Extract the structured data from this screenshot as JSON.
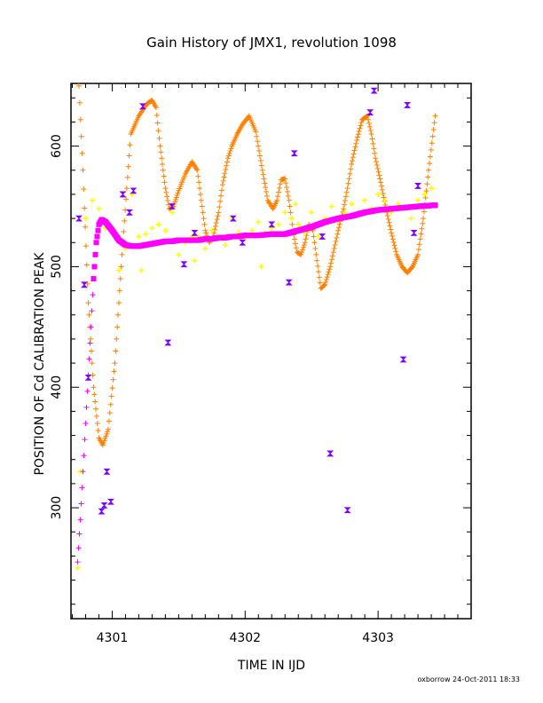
{
  "chart_data": {
    "type": "scatter",
    "title": "Gain History of JMX1, revolution 1098",
    "xlabel": "TIME IN IJD",
    "ylabel": "POSITION OF Cd CALIBRATION PEAK",
    "footer": "oxborrow 24-Oct-2011 18:33",
    "xlim": [
      4300.69,
      4303.7
    ],
    "ylim": [
      208,
      652
    ],
    "xticks": [
      4301,
      4302,
      4303
    ],
    "xtick_labels": [
      "4301",
      "4302",
      "4303"
    ],
    "yticks": [
      300,
      400,
      500,
      600
    ],
    "ytick_labels": [
      "300",
      "400",
      "500",
      "600"
    ],
    "grid": false,
    "legend": "none",
    "colors": {
      "orange": "#ff8000",
      "magenta": "#ff00ff",
      "yellow": "#ffff00",
      "purple": "#8000ff"
    },
    "orange_curve": {
      "x": [
        4300.75,
        4300.78,
        4300.82,
        4300.86,
        4300.9,
        4300.93,
        4300.97,
        4301.02,
        4301.08,
        4301.14,
        4301.2,
        4301.26,
        4301.3,
        4301.33,
        4301.36,
        4301.4,
        4301.43,
        4301.46,
        4301.5,
        4301.55,
        4301.6,
        4301.64,
        4301.67,
        4301.7,
        4301.73,
        4301.76,
        4301.8,
        4301.83,
        4301.87,
        4301.9,
        4301.94,
        4301.98,
        4302.03,
        4302.08,
        4302.13,
        4302.17,
        4302.21,
        4302.24,
        4302.27,
        4302.3,
        4302.33,
        4302.36,
        4302.39,
        4302.42,
        4302.45,
        4302.48,
        4302.51,
        4302.54,
        4302.57,
        4302.6,
        4302.64,
        4302.67,
        4302.7,
        4302.74,
        4302.77,
        4302.8,
        4302.84,
        4302.88,
        4302.92,
        4302.95,
        4302.98,
        4303.02,
        4303.06,
        4303.1,
        4303.14,
        4303.18,
        4303.22,
        4303.26,
        4303.3,
        4303.34,
        4303.38,
        4303.43
      ],
      "y": [
        650,
        580,
        470,
        400,
        358,
        352,
        365,
        420,
        520,
        610,
        625,
        635,
        638,
        632,
        600,
        565,
        548,
        550,
        563,
        577,
        587,
        580,
        555,
        530,
        520,
        525,
        545,
        568,
        590,
        600,
        610,
        618,
        625,
        612,
        580,
        555,
        548,
        555,
        572,
        573,
        555,
        530,
        512,
        510,
        520,
        535,
        530,
        505,
        482,
        485,
        500,
        515,
        530,
        548,
        565,
        585,
        605,
        622,
        625,
        610,
        590,
        570,
        548,
        528,
        510,
        500,
        495,
        500,
        510,
        540,
        580,
        625
      ]
    },
    "magenta_curve": {
      "x": [
        4300.74,
        4300.76,
        4300.78,
        4300.8,
        4300.82,
        4300.84,
        4300.86,
        4300.88,
        4300.9,
        4300.92,
        4300.95,
        4301.0,
        4301.05,
        4301.1,
        4301.15,
        4301.2,
        4301.25,
        4301.3,
        4301.35,
        4301.4,
        4301.45,
        4301.5,
        4301.55,
        4301.6,
        4301.65,
        4301.7,
        4301.75,
        4301.8,
        4301.85,
        4301.9,
        4301.95,
        4302.0,
        4302.1,
        4302.2,
        4302.3,
        4302.4,
        4302.5,
        4302.6,
        4302.7,
        4302.8,
        4302.9,
        4303.0,
        4303.1,
        4303.2,
        4303.3,
        4303.43
      ],
      "y": [
        255,
        290,
        330,
        370,
        410,
        450,
        490,
        520,
        535,
        539,
        537,
        530,
        522,
        518,
        517,
        517,
        518,
        519,
        520,
        521,
        521,
        522,
        522,
        522,
        522,
        523,
        523,
        524,
        524,
        525,
        525,
        526,
        526,
        527,
        527,
        530,
        533,
        537,
        540,
        542,
        545,
        547,
        548,
        549,
        550,
        551
      ]
    },
    "yellow_points": {
      "x": [
        4300.74,
        4300.76,
        4300.8,
        4300.85,
        4300.9,
        4300.95,
        4301.0,
        4301.05,
        4301.1,
        4301.15,
        4301.2,
        4301.25,
        4301.3,
        4301.35,
        4301.4,
        4301.45,
        4301.5,
        4301.55,
        4301.6,
        4301.65,
        4301.7,
        4301.75,
        4301.8,
        4301.85,
        4301.9,
        4301.95,
        4302.0,
        4302.05,
        4302.1,
        4302.15,
        4302.2,
        4302.25,
        4302.3,
        4302.35,
        4302.4,
        4302.45,
        4302.5,
        4302.55,
        4302.6,
        4302.65,
        4302.7,
        4302.75,
        4302.8,
        4302.85,
        4302.9,
        4302.95,
        4303.0,
        4303.05,
        4303.1,
        4303.15,
        4303.2,
        4303.25,
        4303.3,
        4303.35,
        4303.4,
        4302.12,
        4302.38,
        4301.22,
        4301.62
      ],
      "y": [
        250,
        330,
        540,
        555,
        548,
        532,
        530,
        497,
        515,
        560,
        525,
        527,
        532,
        535,
        530,
        545,
        510,
        520,
        525,
        525,
        515,
        530,
        525,
        518,
        540,
        528,
        524,
        530,
        537,
        528,
        532,
        535,
        545,
        540,
        535,
        528,
        545,
        525,
        540,
        550,
        538,
        545,
        552,
        545,
        555,
        548,
        560,
        555,
        545,
        552,
        548,
        540,
        555,
        560,
        565,
        500,
        552,
        497,
        505
      ]
    },
    "purple_points": {
      "x": [
        4300.75,
        4300.79,
        4300.82,
        4300.92,
        4300.94,
        4300.96,
        4300.99,
        4301.08,
        4301.13,
        4301.16,
        4301.23,
        4301.42,
        4301.45,
        4301.54,
        4301.62,
        4301.91,
        4301.98,
        4302.2,
        4302.33,
        4302.37,
        4302.58,
        4302.64,
        4302.77,
        4302.94,
        4302.97,
        4303.19,
        4303.22,
        4303.27,
        4303.3
      ],
      "y": [
        540,
        485,
        408,
        297,
        302,
        330,
        305,
        560,
        545,
        563,
        633,
        437,
        550,
        502,
        528,
        540,
        520,
        535,
        487,
        594,
        525,
        345,
        298,
        628,
        646,
        423,
        634,
        528,
        567
      ]
    }
  }
}
